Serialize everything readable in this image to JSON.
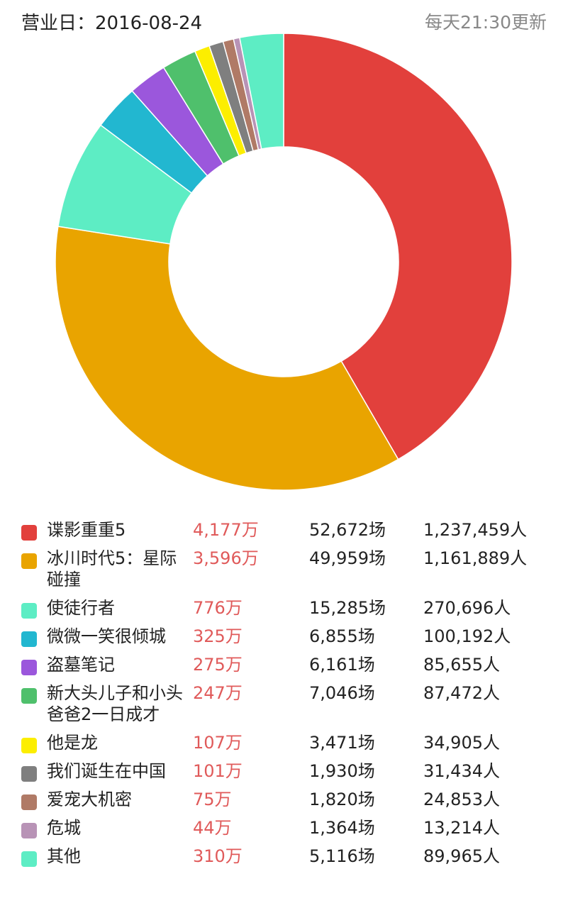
{
  "header": {
    "business_date": "营业日：2016-08-24",
    "update_note": "每天21:30更新"
  },
  "chart_data": {
    "type": "pie",
    "style": "donut",
    "title": "",
    "value_unit": "万",
    "slices": [
      {
        "label": "谍影重重5",
        "value": 4177,
        "gross": "4,177万",
        "shows": "52,672场",
        "viewers": "1,237,459人",
        "color": "#e2403c"
      },
      {
        "label": "冰川时代5：星际碰撞",
        "value": 3596,
        "gross": "3,596万",
        "shows": "49,959场",
        "viewers": "1,161,889人",
        "color": "#e9a400"
      },
      {
        "label": "使徒行者",
        "value": 776,
        "gross": "776万",
        "shows": "15,285场",
        "viewers": "270,696人",
        "color": "#5dedc4"
      },
      {
        "label": "微微一笑很倾城",
        "value": 325,
        "gross": "325万",
        "shows": "6,855场",
        "viewers": "100,192人",
        "color": "#22b7d0"
      },
      {
        "label": "盗墓笔记",
        "value": 275,
        "gross": "275万",
        "shows": "6,161场",
        "viewers": "85,655人",
        "color": "#9b57dc"
      },
      {
        "label": "新大头儿子和小头爸爸2一日成才",
        "value": 247,
        "gross": "247万",
        "shows": "7,046场",
        "viewers": "87,472人",
        "color": "#4fc06c"
      },
      {
        "label": "他是龙",
        "value": 107,
        "gross": "107万",
        "shows": "3,471场",
        "viewers": "34,905人",
        "color": "#fcee00"
      },
      {
        "label": "我们诞生在中国",
        "value": 101,
        "gross": "101万",
        "shows": "1,930场",
        "viewers": "31,434人",
        "color": "#7f7f7f"
      },
      {
        "label": "爱宠大机密",
        "value": 75,
        "gross": "75万",
        "shows": "1,820场",
        "viewers": "24,853人",
        "color": "#b07a66"
      },
      {
        "label": "危城",
        "value": 44,
        "gross": "44万",
        "shows": "1,364场",
        "viewers": "13,214人",
        "color": "#b893b6"
      },
      {
        "label": "其他",
        "value": 310,
        "gross": "310万",
        "shows": "5,116场",
        "viewers": "89,965人",
        "color": "#5dedc4"
      }
    ],
    "legend_placement": "bottom"
  }
}
